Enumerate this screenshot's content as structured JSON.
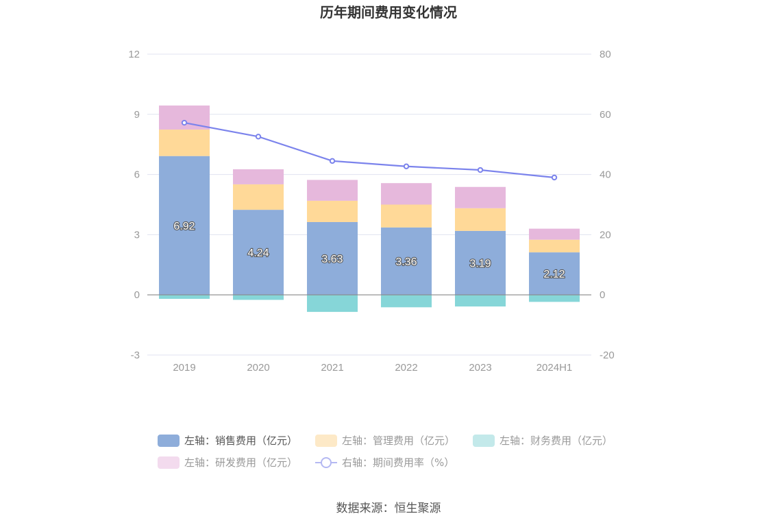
{
  "chart_data": {
    "type": "bar",
    "title": "历年期间费用变化情况",
    "categories": [
      "2019",
      "2020",
      "2021",
      "2022",
      "2023",
      "2024H1"
    ],
    "left_axis": {
      "ylim": [
        -3,
        12
      ],
      "ticks": [
        "-3",
        "0",
        "3",
        "6",
        "9",
        "12"
      ]
    },
    "right_axis": {
      "ylim": [
        -20,
        80
      ],
      "ticks": [
        "-20",
        "0",
        "20",
        "40",
        "60",
        "80"
      ]
    },
    "series": [
      {
        "name": "左轴：销售费用（亿元）",
        "axis": "left",
        "stack": "total",
        "color": "#8eadda",
        "values": [
          6.92,
          4.24,
          3.63,
          3.36,
          3.19,
          2.12
        ],
        "labels": [
          "6.92",
          "4.24",
          "3.63",
          "3.36",
          "3.19",
          "2.12"
        ]
      },
      {
        "name": "左轴：管理费用（亿元）",
        "axis": "left",
        "stack": "total",
        "color": "#ffd998",
        "values": [
          1.32,
          1.27,
          1.06,
          1.14,
          1.13,
          0.63
        ]
      },
      {
        "name": "左轴：财务费用（亿元）",
        "axis": "left",
        "stack": "total",
        "color": "#86d6d8",
        "values": [
          -0.2,
          -0.25,
          -0.85,
          -0.62,
          -0.58,
          -0.35
        ]
      },
      {
        "name": "左轴：研发费用（亿元）",
        "axis": "left",
        "stack": "total",
        "color": "#e6b8dc",
        "values": [
          1.2,
          0.75,
          1.04,
          1.07,
          1.06,
          0.55
        ]
      },
      {
        "name": "右轴：期间费用率（%）",
        "axis": "right",
        "type": "line",
        "color": "#7b83ec",
        "values": [
          57.2,
          52.6,
          44.5,
          42.7,
          41.5,
          39.0
        ]
      }
    ],
    "legend": [
      {
        "label": "左轴：销售费用（亿元）",
        "color": "#8eadda",
        "kind": "bar",
        "active": true
      },
      {
        "label": "左轴：管理费用（亿元）",
        "color": "#fde9c7",
        "kind": "bar",
        "active": false
      },
      {
        "label": "左轴：财务费用（亿元）",
        "color": "#c3e9ea",
        "kind": "bar",
        "active": false
      },
      {
        "label": "左轴：研发费用（亿元）",
        "color": "#f3dbee",
        "kind": "bar",
        "active": false
      },
      {
        "label": "右轴：期间费用率（%）",
        "color": "#b4b8f2",
        "kind": "line",
        "active": false
      }
    ],
    "source": "数据来源：恒生聚源",
    "colors": {
      "grid": "#e0e3f0",
      "zero_axis": "#888888",
      "line": "#7b83ec"
    }
  }
}
